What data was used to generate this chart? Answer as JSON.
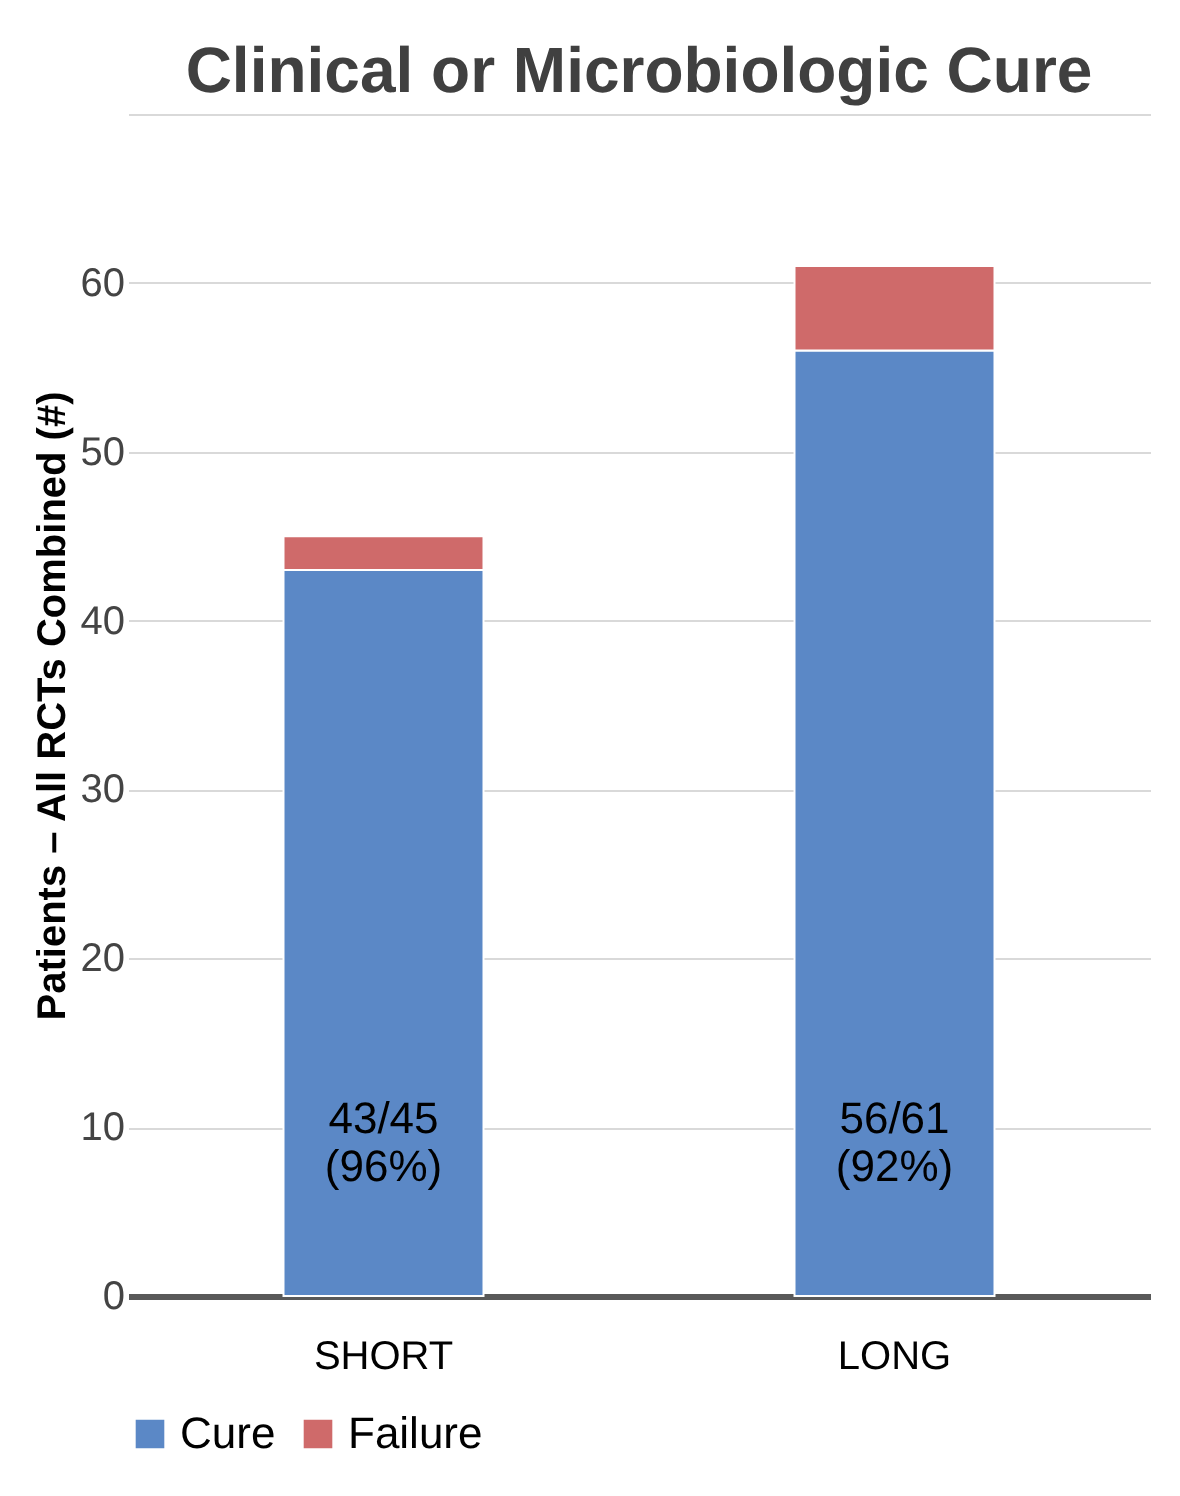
{
  "chart_data": {
    "type": "bar",
    "title": "Clinical or Microbiologic Cure",
    "ylabel": "Patients – All RCTs Combined (#)",
    "categories": [
      "SHORT",
      "LONG"
    ],
    "stacked": true,
    "series": [
      {
        "name": "Cure",
        "color": "#5b88c6",
        "values": [
          43,
          56
        ]
      },
      {
        "name": "Failure",
        "color": "#cf6a6a",
        "values": [
          2,
          5
        ]
      }
    ],
    "ylim": [
      0,
      70
    ],
    "yticks": [
      0,
      10,
      20,
      30,
      40,
      50,
      60,
      {
        "value": 70,
        "label": null
      }
    ],
    "grid": "y",
    "legend": "bottom",
    "annotations": [
      "43/45\n(96%)",
      "56/61\n(92%)"
    ]
  }
}
